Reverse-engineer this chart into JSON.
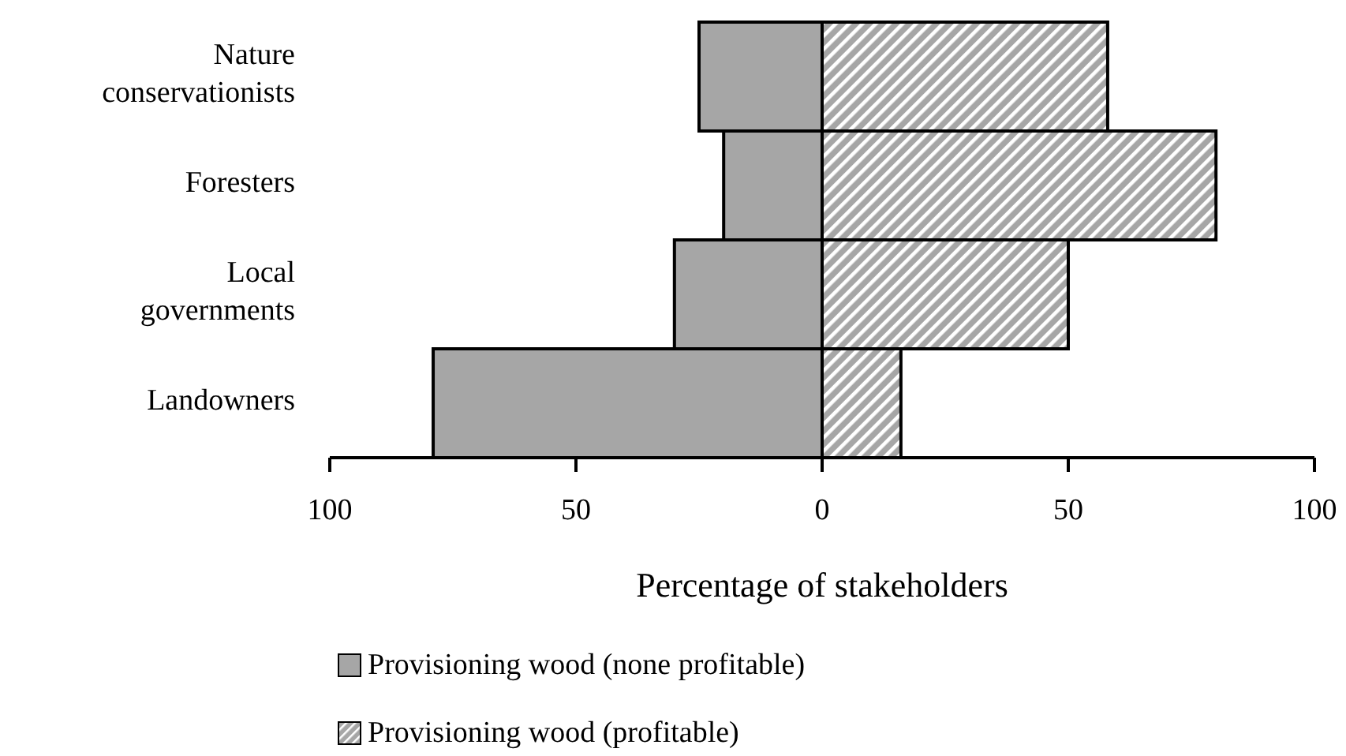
{
  "chart_data": {
    "type": "bar",
    "orientation": "horizontal",
    "stacked": true,
    "xlabel": "Percentage of stakeholders",
    "categories": [
      "Nature conservationists",
      "Foresters",
      "Local governments",
      "Landowners"
    ],
    "series": [
      {
        "name": "Provisioning wood (none profitable)",
        "color": "#a6a6a6",
        "values": [
          -25,
          -20,
          -30,
          -79
        ]
      },
      {
        "name": "Provisioning wood (profitable)",
        "color": "#a6a6a6",
        "values": [
          58,
          80,
          50,
          16
        ]
      }
    ],
    "xlim": [
      -100,
      100
    ],
    "xticks": [
      {
        "value": -100,
        "label": "100"
      },
      {
        "value": -50,
        "label": "50"
      },
      0,
      50,
      100
    ],
    "grid": false,
    "legend": "bottom"
  }
}
